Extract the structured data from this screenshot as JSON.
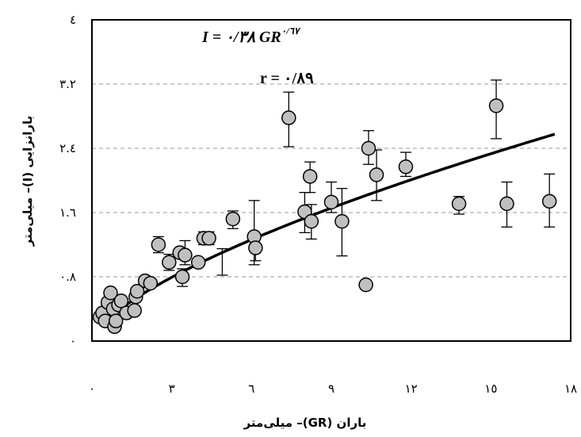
{
  "chart_data": {
    "type": "scatter",
    "title": "",
    "xlabel": "باران (GR)– میلی‌متر",
    "ylabel": "بارانزایی (I)– میلی‌متر",
    "xlim": [
      0,
      18
    ],
    "ylim": [
      0,
      4
    ],
    "x_ticks": [
      0,
      3,
      6,
      9,
      12,
      15,
      18
    ],
    "x_tick_labels": [
      "٠",
      "٣",
      "٦",
      "٩",
      "١٢",
      "١٥",
      "١٨"
    ],
    "y_ticks": [
      0,
      0.8,
      1.6,
      2.4,
      3.2,
      4
    ],
    "y_tick_labels": [
      "٠",
      "٠.٨",
      "١.٦",
      "٢.٤",
      "٣.٢",
      "٤"
    ],
    "grid": "horizontal dashed",
    "annotations": [
      {
        "id": "equation",
        "text": "I = ٠/٣٨ GR",
        "superscript": "٠/٦٧"
      },
      {
        "id": "correlation",
        "text": "r = ٠/٨٩"
      }
    ],
    "series": [
      {
        "type": "scatter",
        "points": [
          {
            "x": 0.3,
            "y": 0.3
          },
          {
            "x": 0.4,
            "y": 0.35
          },
          {
            "x": 0.5,
            "y": 0.25
          },
          {
            "x": 0.6,
            "y": 0.48
          },
          {
            "x": 0.7,
            "y": 0.6
          },
          {
            "x": 0.8,
            "y": 0.4
          },
          {
            "x": 0.85,
            "y": 0.18
          },
          {
            "x": 0.9,
            "y": 0.25
          },
          {
            "x": 1.0,
            "y": 0.45
          },
          {
            "x": 1.1,
            "y": 0.5
          },
          {
            "x": 1.3,
            "y": 0.35
          },
          {
            "x": 1.6,
            "y": 0.38
          },
          {
            "x": 1.65,
            "y": 0.55
          },
          {
            "x": 1.7,
            "y": 0.62
          },
          {
            "x": 2.0,
            "y": 0.75
          },
          {
            "x": 2.2,
            "y": 0.72
          },
          {
            "x": 2.5,
            "y": 1.2
          },
          {
            "x": 2.9,
            "y": 0.98
          },
          {
            "x": 3.3,
            "y": 1.1
          },
          {
            "x": 3.4,
            "y": 0.8
          },
          {
            "x": 3.5,
            "y": 1.07
          },
          {
            "x": 4.0,
            "y": 0.98
          },
          {
            "x": 4.2,
            "y": 1.28
          },
          {
            "x": 4.4,
            "y": 1.28
          },
          {
            "x": 5.3,
            "y": 1.52
          },
          {
            "x": 6.1,
            "y": 1.3
          },
          {
            "x": 6.15,
            "y": 1.16
          },
          {
            "x": 7.4,
            "y": 2.78
          },
          {
            "x": 8.0,
            "y": 1.61
          },
          {
            "x": 8.2,
            "y": 2.05
          },
          {
            "x": 8.25,
            "y": 1.49
          },
          {
            "x": 9.0,
            "y": 1.73
          },
          {
            "x": 9.4,
            "y": 1.49
          },
          {
            "x": 10.3,
            "y": 0.7
          },
          {
            "x": 10.4,
            "y": 2.4
          },
          {
            "x": 10.7,
            "y": 2.07
          },
          {
            "x": 11.8,
            "y": 2.17
          },
          {
            "x": 13.8,
            "y": 1.71
          },
          {
            "x": 15.2,
            "y": 2.93
          },
          {
            "x": 15.6,
            "y": 1.71
          },
          {
            "x": 17.2,
            "y": 1.74
          }
        ],
        "error_bars": [
          {
            "x": 2.5,
            "low": 1.1,
            "high": 1.3
          },
          {
            "x": 2.9,
            "low": 0.88,
            "high": 1.08
          },
          {
            "x": 3.4,
            "low": 0.68,
            "high": 0.9
          },
          {
            "x": 3.5,
            "low": 0.95,
            "high": 1.25
          },
          {
            "x": 4.2,
            "low": 1.2,
            "high": 1.36
          },
          {
            "x": 4.4,
            "low": 1.2,
            "high": 1.36
          },
          {
            "x": 4.9,
            "low": 0.82,
            "high": 1.15
          },
          {
            "x": 5.3,
            "low": 1.4,
            "high": 1.62
          },
          {
            "x": 6.1,
            "low": 0.95,
            "high": 1.75
          },
          {
            "x": 6.15,
            "low": 1.0,
            "high": 1.3
          },
          {
            "x": 7.4,
            "low": 2.42,
            "high": 3.1
          },
          {
            "x": 8.0,
            "low": 1.35,
            "high": 1.85
          },
          {
            "x": 8.2,
            "low": 1.85,
            "high": 2.23
          },
          {
            "x": 8.25,
            "low": 1.27,
            "high": 1.7
          },
          {
            "x": 9.0,
            "low": 1.6,
            "high": 1.98
          },
          {
            "x": 9.4,
            "low": 1.06,
            "high": 1.9
          },
          {
            "x": 10.4,
            "low": 2.2,
            "high": 2.62
          },
          {
            "x": 10.7,
            "low": 1.75,
            "high": 2.38
          },
          {
            "x": 11.8,
            "low": 2.05,
            "high": 2.35
          },
          {
            "x": 13.8,
            "low": 1.58,
            "high": 1.8
          },
          {
            "x": 15.2,
            "low": 2.52,
            "high": 3.25
          },
          {
            "x": 15.6,
            "low": 1.42,
            "high": 1.98
          },
          {
            "x": 17.2,
            "low": 1.42,
            "high": 2.08
          }
        ],
        "marker_color": "#c0c0c0"
      },
      {
        "type": "line",
        "fit": "power",
        "coefficient": 0.38,
        "exponent": 0.67,
        "x_range": [
          0.6,
          17.4
        ],
        "color": "#000000"
      }
    ]
  }
}
